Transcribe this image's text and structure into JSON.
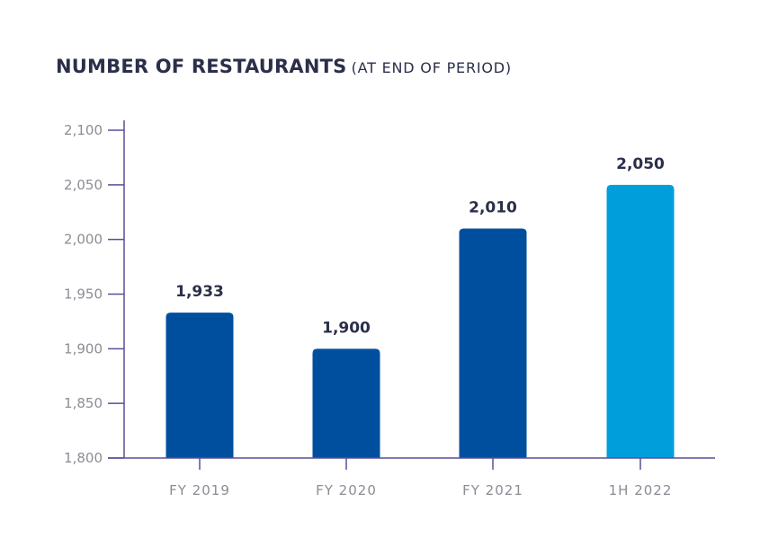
{
  "chart_data": {
    "type": "bar",
    "title": "NUMBER OF RESTAURANTS",
    "subtitle": "(AT END OF PERIOD)",
    "xlabel": "",
    "ylabel": "",
    "categories": [
      "FY 2019",
      "FY 2020",
      "FY 2021",
      "1H 2022"
    ],
    "values": [
      1933,
      1900,
      2010,
      2050
    ],
    "value_labels": [
      "1,933",
      "1,900",
      "2,010",
      "2,050"
    ],
    "ylim": [
      1800,
      2100
    ],
    "yticks": [
      1800,
      1850,
      1900,
      1950,
      2000,
      2050,
      2100
    ],
    "ytick_labels": [
      "1,800",
      "1,850",
      "1,900",
      "1,950",
      "2,000",
      "2,050",
      "2,100"
    ],
    "bar_colors": [
      "#004f9e",
      "#004f9e",
      "#004f9e",
      "#009fdc"
    ],
    "axis_color": "#5a4e96",
    "grid": false,
    "legend": "none"
  }
}
